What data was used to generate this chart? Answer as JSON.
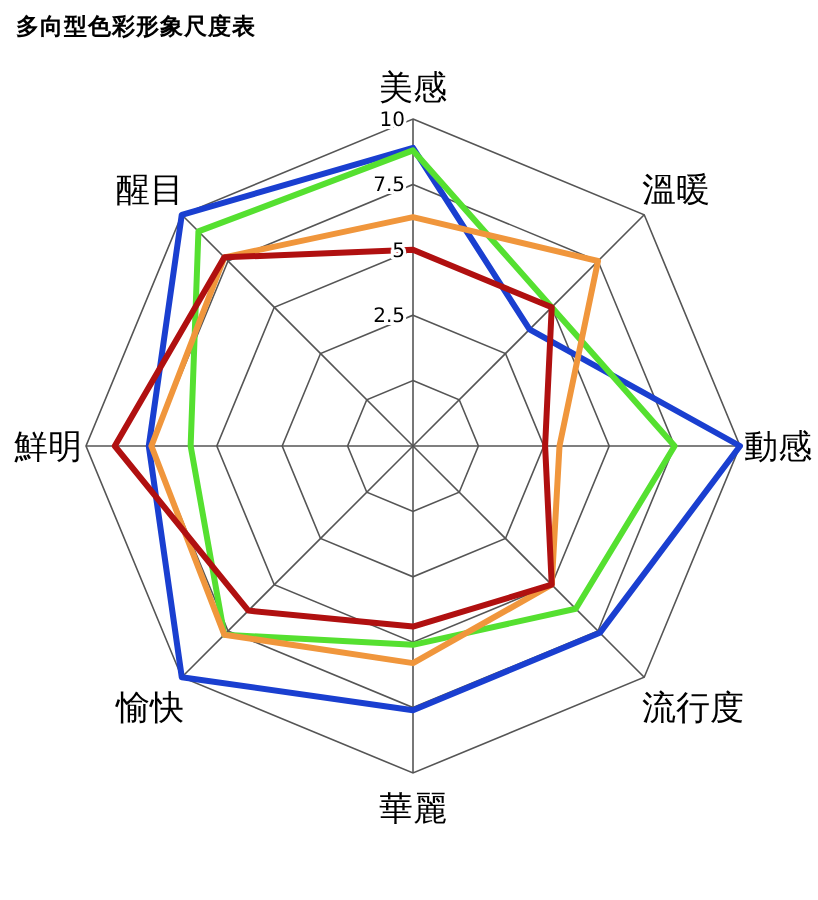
{
  "chart_data": {
    "type": "radar",
    "title": "多向型色彩形象尺度表",
    "categories": [
      "美感",
      "溫暖",
      "動感",
      "流行度",
      "華麗",
      "愉快",
      "鮮明",
      "醒目"
    ],
    "ylim": [
      -2.5,
      10
    ],
    "yticks": [
      2.5,
      5,
      7.5,
      10
    ],
    "grid": true,
    "series": [
      {
        "color": "#1a3fd0",
        "values": [
          8.9,
          3.8,
          10,
          7.6,
          7.6,
          10,
          7.6,
          10
        ]
      },
      {
        "color": "#55e030",
        "values": [
          8.8,
          5,
          7.5,
          6.3,
          5.1,
          7.7,
          6,
          9.1
        ]
      },
      {
        "color": "#f0963c",
        "values": [
          6.25,
          7.5,
          3.1,
          5,
          5.8,
          7.7,
          7.5,
          7.7
        ]
      },
      {
        "color": "#b01010",
        "values": [
          5,
          5,
          2.55,
          5,
          4.4,
          6.4,
          8.9,
          7.7
        ]
      }
    ]
  }
}
